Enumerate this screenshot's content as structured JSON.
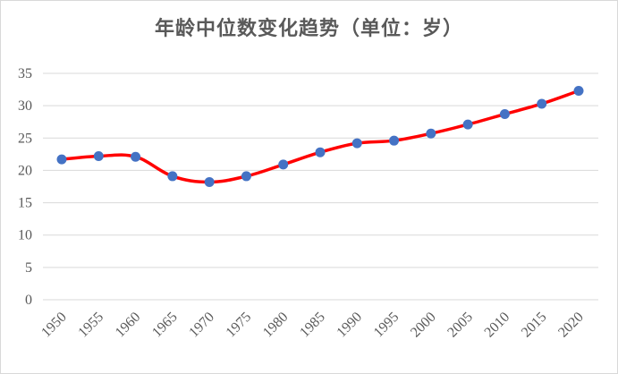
{
  "chart_data": {
    "type": "line",
    "title": "年龄中位数变化趋势（单位：岁）",
    "xlabel": "",
    "ylabel": "",
    "x": [
      1950,
      1955,
      1960,
      1965,
      1970,
      1975,
      1980,
      1985,
      1990,
      1995,
      2000,
      2005,
      2010,
      2015,
      2020
    ],
    "series": [
      {
        "values": [
          21.7,
          22.2,
          22.1,
          19.1,
          18.2,
          19.1,
          20.9,
          22.8,
          24.2,
          24.6,
          25.7,
          27.1,
          28.7,
          30.3,
          32.3
        ]
      }
    ],
    "ylim": [
      0,
      35
    ],
    "yticks": [
      0,
      5,
      10,
      15,
      20,
      25,
      30,
      35
    ],
    "grid": true,
    "smooth": true,
    "line_color": "#ff0000",
    "marker_color": "#4472c4",
    "grid_color": "#d9d9d9"
  }
}
